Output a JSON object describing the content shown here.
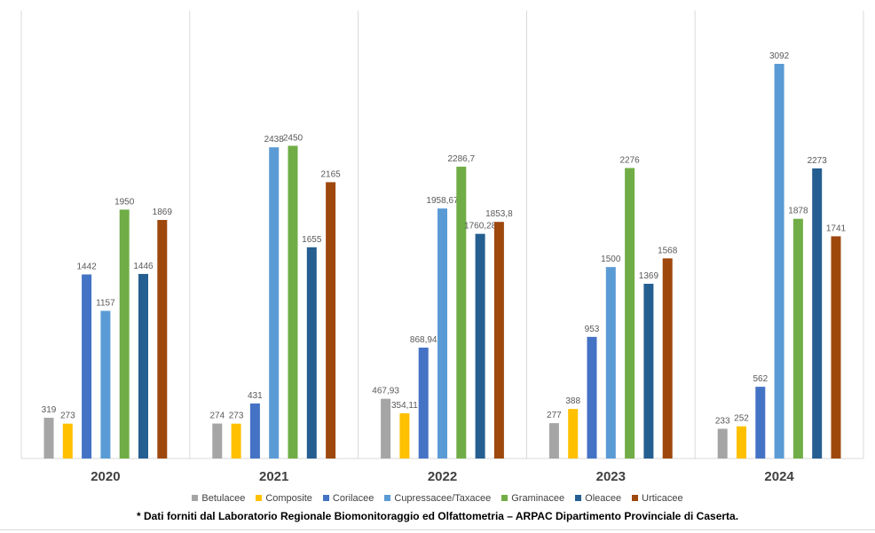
{
  "chart_data": {
    "type": "bar",
    "categories": [
      "2020",
      "2021",
      "2022",
      "2023",
      "2024"
    ],
    "series": [
      {
        "name": "Betulacee",
        "color": "#a5a5a5",
        "values": [
          319,
          274,
          467.93,
          277,
          233
        ],
        "labels": [
          "319",
          "274",
          "467,93",
          "277",
          "233"
        ]
      },
      {
        "name": "Composite",
        "color": "#ffc000",
        "values": [
          273,
          273,
          354.11,
          388,
          252
        ],
        "labels": [
          "273",
          "273",
          "354,11",
          "388",
          "252"
        ]
      },
      {
        "name": "Corilacee",
        "color": "#4472c4",
        "values": [
          1442,
          431,
          868.94,
          953,
          562
        ],
        "labels": [
          "1442",
          "431",
          "868,94",
          "953",
          "562"
        ]
      },
      {
        "name": "Cupressacee/Taxacee",
        "color": "#5b9bd5",
        "values": [
          1157,
          2438,
          1958.67,
          1500,
          3092
        ],
        "labels": [
          "1157",
          "2438",
          "1958,67",
          "1500",
          "3092"
        ]
      },
      {
        "name": "Graminacee",
        "color": "#70ad47",
        "values": [
          1950,
          2450,
          2286.7,
          2276,
          1878
        ],
        "labels": [
          "1950",
          "2450",
          "2286,7",
          "2276",
          "1878"
        ]
      },
      {
        "name": "Oleacee",
        "color": "#255e91",
        "values": [
          1446,
          1655,
          1760.28,
          1369,
          2273
        ],
        "labels": [
          "1446",
          "1655",
          "1760,28",
          "1369",
          "2273"
        ]
      },
      {
        "name": "Urticacee",
        "color": "#9e480e",
        "values": [
          1869,
          2165,
          1853.8,
          1568,
          1741
        ],
        "labels": [
          "1869",
          "2165",
          "1853,8",
          "1568",
          "1741"
        ]
      }
    ],
    "ylim": [
      0,
      3500
    ],
    "legend_position": "bottom",
    "grid": "vertical separators between categories"
  },
  "footnote": "* Dati forniti dal Laboratorio Regionale Biomonitoraggio ed Olfattometria – ARPAC Dipartimento Provinciale di Caserta."
}
